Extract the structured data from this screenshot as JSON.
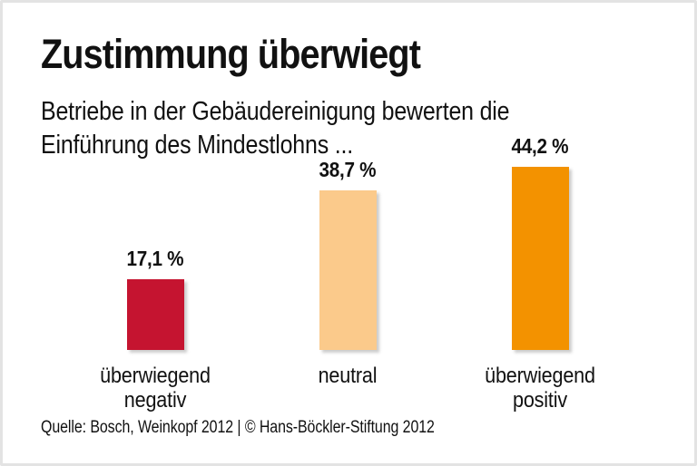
{
  "header": {
    "title": "Zustimmung überwiegt",
    "subtitle_line1": "Betriebe in der Gebäudereinigung bewerten die",
    "subtitle_line2": "Einführung des Mindestlohns ..."
  },
  "chart_data": {
    "type": "bar",
    "title": "Zustimmung überwiegt",
    "subtitle": "Betriebe in der Gebäudereinigung bewerten die Einführung des Mindestlohns ...",
    "categories": [
      "überwiegend negativ",
      "neutral",
      "überwiegend positiv"
    ],
    "values": [
      17.1,
      38.7,
      44.2
    ],
    "value_labels": [
      "17,1 %",
      "38,7 %",
      "44,2 %"
    ],
    "bar_colors": [
      "#c51430",
      "#fbca8b",
      "#f39200"
    ],
    "xlabel": "",
    "ylabel": "",
    "ylim": [
      0,
      50
    ],
    "unit": "%",
    "grid": false,
    "legend": false,
    "axes_visible": false
  },
  "bars": [
    {
      "value_label": "17,1 %",
      "label_line1": "überwiegend",
      "label_line2": "negativ",
      "color": "#c51430",
      "value": 17.1
    },
    {
      "value_label": "38,7 %",
      "label_line1": "neutral",
      "label_line2": "",
      "color": "#fbca8b",
      "value": 38.7
    },
    {
      "value_label": "44,2 %",
      "label_line1": "überwiegend",
      "label_line2": "positiv",
      "color": "#f39200",
      "value": 44.2
    }
  ],
  "footer": {
    "source": "Quelle: Bosch, Weinkopf 2012 | © Hans-Böckler-Stiftung 2012"
  },
  "colors": {
    "negative": "#c51430",
    "neutral": "#fbca8b",
    "positive": "#f39200",
    "background": "#ffffff",
    "border": "#e3e3e3",
    "text": "#111111"
  }
}
